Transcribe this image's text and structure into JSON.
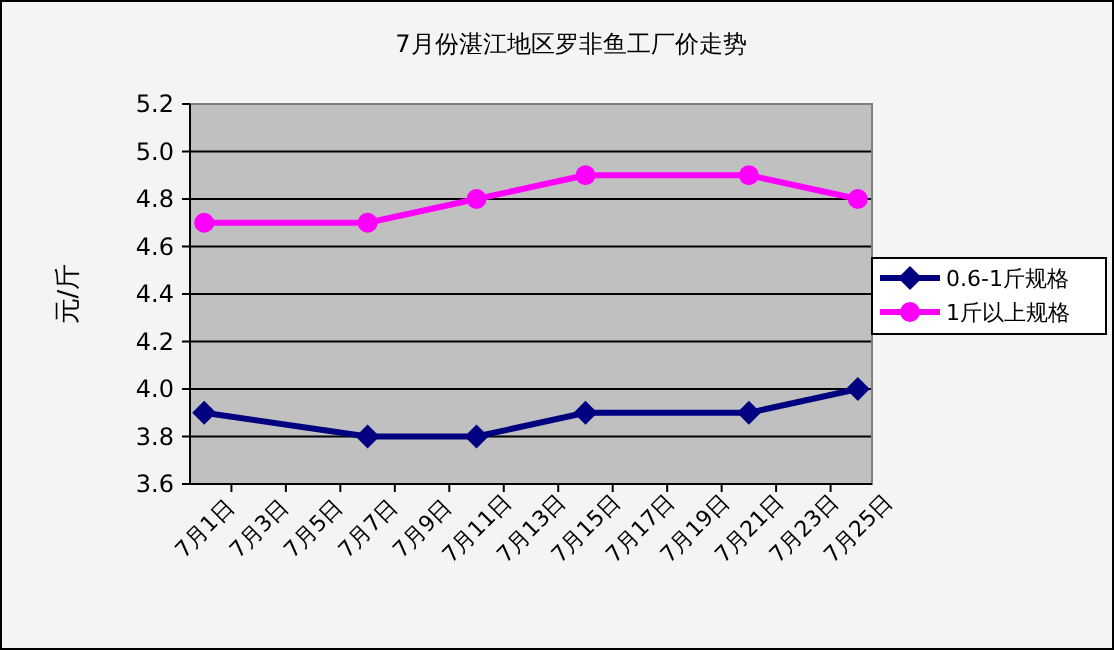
{
  "chart_data": {
    "type": "line",
    "title": "7月份湛江地区罗非鱼工厂价走势",
    "ylabel": "元/斤",
    "categories": [
      "7月1日",
      "7月3日",
      "7月5日",
      "7月7日",
      "7月9日",
      "7月11日",
      "7月13日",
      "7月15日",
      "7月17日",
      "7月19日",
      "7月21日",
      "7月23日",
      "7月25日"
    ],
    "ylim": [
      3.6,
      5.2
    ],
    "yticks": [
      {
        "value": 3.6,
        "label": "3.6"
      },
      {
        "value": 3.8,
        "label": "3.8"
      },
      {
        "value": 4,
        "label": "4.0"
      },
      {
        "value": 4.2,
        "label": "4.2"
      },
      {
        "value": 4.4,
        "label": "4.4"
      },
      {
        "value": 4.6,
        "label": "4.6"
      },
      {
        "value": 4.8,
        "label": "4.8"
      },
      {
        "value": 5,
        "label": "5.0"
      },
      {
        "value": 5.2,
        "label": "5.2"
      }
    ],
    "grid": "y",
    "legend": "right",
    "series": [
      {
        "name": "0.6-1斤规格",
        "color": "#000080",
        "marker": "diamond",
        "values": [
          3.9,
          null,
          null,
          3.8,
          null,
          3.8,
          null,
          3.9,
          null,
          null,
          3.9,
          null,
          4.0
        ]
      },
      {
        "name": "1斤以上规格",
        "color": "#ff00ff",
        "marker": "circle",
        "values": [
          4.7,
          null,
          null,
          4.7,
          null,
          4.8,
          null,
          4.9,
          null,
          null,
          4.9,
          null,
          4.8
        ]
      }
    ]
  }
}
